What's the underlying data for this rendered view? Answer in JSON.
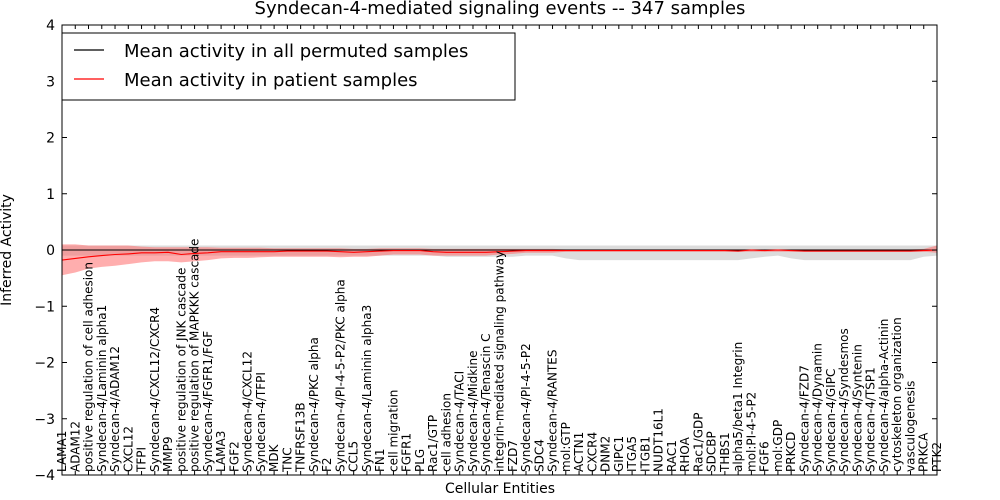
{
  "chart_data": {
    "type": "line",
    "title": "Syndecan-4-mediated signaling events -- 347 samples",
    "xlabel": "Cellular Entities",
    "ylabel": "Inferred Activity",
    "ylim": [
      -4,
      4
    ],
    "yticks": [
      -4,
      -3,
      -2,
      -1,
      0,
      1,
      2,
      3,
      4
    ],
    "ytick_labels": [
      "−4",
      "−3",
      "−2",
      "−1",
      "0",
      "1",
      "2",
      "3",
      "4"
    ],
    "legend_position": "upper-left",
    "colors": {
      "permuted": "#000000",
      "patient": "#ff0000",
      "permuted_band": "#bfbfbf",
      "patient_band": "#ff6b6b"
    },
    "categories": [
      "LAMA1",
      "ADAM12",
      "positive regulation of cell adhesion",
      "Syndecan-4/Laminin alpha1",
      "Syndecan-4/ADAM12",
      "CXCL12",
      "TFPI",
      "Syndecan-4/CXCL12/CXCR4",
      "MMP9",
      "positive regulation of JNK cascade",
      "positive regulation of MAPKKK cascade",
      "Syndecan-4/FGFR1/FGF",
      "LAMA3",
      "FGF2",
      "Syndecan-4/CXCL12",
      "Syndecan-4/TFPI",
      "MDK",
      "TNC",
      "TNFRSF13B",
      "Syndecan-4/PKC alpha",
      "F2",
      "Syndecan-4/PI-4-5-P2/PKC alpha",
      "CCL5",
      "Syndecan-4/Laminin alpha3",
      "FN1",
      "cell migration",
      "FGFR1",
      "PLG",
      "Rac1/GTP",
      "cell adhesion",
      "Syndecan-4/TACI",
      "Syndecan-4/Midkine",
      "Syndecan-4/Tenascin C",
      "integrin-mediated signaling pathway",
      "FZD7",
      "Syndecan-4/PI-4-5-P2",
      "SDC4",
      "Syndecan-4/RANTES",
      "mol:GTP",
      "ACTN1",
      "CXCR4",
      "DNM2",
      "GIPC1",
      "ITGA5",
      "ITGB1",
      "NUDT16L1",
      "RAC1",
      "RHOA",
      "Rac1/GDP",
      "SDCBP",
      "THBS1",
      "alpha5/beta1 Integrin",
      "mol:PI-4-5-P2",
      "FGF6",
      "mol:GDP",
      "PRKCD",
      "Syndecan-4/FZD7",
      "Syndecan-4/Dynamin",
      "Syndecan-4/GIPC",
      "Syndecan-4/Syndesmos",
      "Syndecan-4/Syntenin",
      "Syndecan-4/TSP1",
      "Syndecan-4/alpha-Actinin",
      "cytoskeleton organization",
      "vasculogenesis",
      "PRKCA",
      "PTK2"
    ],
    "series": [
      {
        "name": "Mean activity in all permuted samples",
        "values": [
          0,
          0,
          0,
          0,
          0,
          0,
          0,
          0,
          0,
          0,
          0,
          0,
          0,
          0,
          0,
          0,
          0,
          0,
          0,
          0,
          0,
          0,
          0,
          0,
          0,
          0,
          0,
          0,
          0,
          0,
          0,
          0,
          0,
          0,
          0,
          0,
          0,
          0,
          0,
          0,
          0,
          0,
          0,
          0,
          0,
          0,
          0,
          0,
          0,
          0,
          0,
          0,
          0,
          0,
          0,
          0,
          0,
          0,
          0,
          0,
          0,
          0,
          0,
          0,
          0,
          0,
          0
        ],
        "band_low": [
          -0.1,
          -0.1,
          -0.1,
          -0.1,
          -0.1,
          -0.1,
          -0.1,
          -0.1,
          -0.1,
          -0.1,
          -0.1,
          -0.1,
          -0.1,
          -0.1,
          -0.1,
          -0.1,
          -0.1,
          -0.1,
          -0.1,
          -0.1,
          -0.1,
          -0.1,
          -0.1,
          -0.1,
          -0.1,
          -0.1,
          -0.1,
          -0.1,
          -0.1,
          -0.12,
          -0.12,
          -0.12,
          -0.12,
          -0.12,
          -0.12,
          -0.1,
          -0.1,
          -0.1,
          -0.15,
          -0.18,
          -0.18,
          -0.18,
          -0.18,
          -0.18,
          -0.18,
          -0.18,
          -0.18,
          -0.18,
          -0.18,
          -0.18,
          -0.18,
          -0.18,
          -0.15,
          -0.12,
          -0.1,
          -0.15,
          -0.18,
          -0.18,
          -0.18,
          -0.18,
          -0.18,
          -0.18,
          -0.18,
          -0.18,
          -0.18,
          -0.12,
          -0.1
        ],
        "band_high": [
          0.08,
          0.08,
          0.08,
          0.08,
          0.08,
          0.08,
          0.08,
          0.08,
          0.08,
          0.08,
          0.08,
          0.08,
          0.08,
          0.08,
          0.08,
          0.08,
          0.08,
          0.08,
          0.08,
          0.08,
          0.08,
          0.08,
          0.08,
          0.08,
          0.08,
          0.08,
          0.08,
          0.08,
          0.08,
          0.08,
          0.08,
          0.08,
          0.08,
          0.08,
          0.08,
          0.08,
          0.08,
          0.08,
          0.08,
          0.08,
          0.08,
          0.08,
          0.08,
          0.08,
          0.08,
          0.08,
          0.08,
          0.08,
          0.08,
          0.08,
          0.08,
          0.08,
          0.08,
          0.08,
          0.08,
          0.08,
          0.08,
          0.08,
          0.08,
          0.08,
          0.08,
          0.08,
          0.08,
          0.08,
          0.08,
          0.08,
          0.08
        ]
      },
      {
        "name": "Mean activity in patient samples",
        "values": [
          -0.18,
          -0.15,
          -0.12,
          -0.1,
          -0.08,
          -0.07,
          -0.05,
          -0.05,
          -0.04,
          -0.08,
          -0.06,
          -0.05,
          -0.03,
          -0.03,
          -0.03,
          -0.03,
          -0.03,
          -0.02,
          -0.02,
          -0.02,
          -0.02,
          -0.03,
          -0.04,
          -0.03,
          -0.02,
          -0.01,
          -0.01,
          -0.01,
          -0.03,
          -0.04,
          -0.04,
          -0.04,
          -0.04,
          -0.03,
          -0.02,
          -0.01,
          -0.01,
          -0.01,
          -0.01,
          -0.01,
          -0.01,
          -0.01,
          -0.01,
          -0.01,
          -0.01,
          -0.01,
          -0.01,
          -0.01,
          -0.01,
          -0.01,
          -0.01,
          -0.02,
          0,
          -0.01,
          0,
          -0.01,
          -0.02,
          -0.02,
          -0.02,
          -0.02,
          -0.02,
          -0.02,
          -0.02,
          -0.02,
          -0.02,
          -0.01,
          0
        ],
        "band_low": [
          -0.45,
          -0.4,
          -0.33,
          -0.3,
          -0.28,
          -0.25,
          -0.22,
          -0.2,
          -0.2,
          -0.22,
          -0.2,
          -0.18,
          -0.15,
          -0.14,
          -0.14,
          -0.13,
          -0.12,
          -0.12,
          -0.12,
          -0.12,
          -0.12,
          -0.13,
          -0.12,
          -0.12,
          -0.1,
          -0.08,
          -0.08,
          -0.08,
          -0.1,
          -0.1,
          -0.1,
          -0.1,
          -0.1,
          -0.08,
          -0.07,
          -0.05,
          -0.05,
          -0.05,
          -0.03,
          -0.03,
          -0.03,
          -0.03,
          -0.03,
          -0.03,
          -0.03,
          -0.03,
          -0.03,
          -0.03,
          -0.03,
          -0.03,
          -0.03,
          -0.03,
          -0.03,
          -0.03,
          -0.03,
          -0.03,
          -0.03,
          -0.03,
          -0.03,
          -0.03,
          -0.03,
          -0.03,
          -0.03,
          -0.03,
          -0.03,
          -0.03,
          -0.05
        ],
        "band_high": [
          0.1,
          0.1,
          0.08,
          0.08,
          0.08,
          0.08,
          0.06,
          0.05,
          0.05,
          0.05,
          0.05,
          0.05,
          0.04,
          0.04,
          0.04,
          0.04,
          0.03,
          0.03,
          0.03,
          0.03,
          0.03,
          0.03,
          0.02,
          0.02,
          0.03,
          0.03,
          0.03,
          0.03,
          0.02,
          0.02,
          0.02,
          0.02,
          0.02,
          0.02,
          0.02,
          0.02,
          0.02,
          0.02,
          0.01,
          0.01,
          0.01,
          0.01,
          0.01,
          0.01,
          0.01,
          0.01,
          0.01,
          0.01,
          0.01,
          0.01,
          0.01,
          0.01,
          0.01,
          0.01,
          0.01,
          0.01,
          0.01,
          0.01,
          0.01,
          0.01,
          0.01,
          0.01,
          0.01,
          0.01,
          0.01,
          0.02,
          0.08
        ]
      }
    ]
  }
}
